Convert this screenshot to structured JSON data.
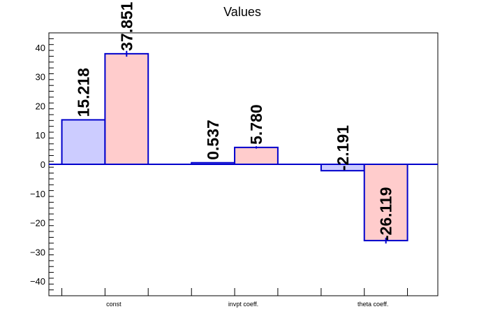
{
  "chart_data": {
    "type": "bar",
    "title": "Values",
    "categories": [
      "const",
      "invpt coeff.",
      "theta coeff."
    ],
    "series": [
      {
        "values": [
          15.218,
          0.537,
          -2.191
        ],
        "errors": [
          0,
          0,
          0
        ],
        "labels": [
          "15.218",
          "0.537",
          "-2.191"
        ],
        "fill": "#ccccff",
        "stroke": "#0000cc"
      },
      {
        "values": [
          37.851,
          5.78,
          -26.119
        ],
        "errors": [
          1.0,
          0.4,
          1.0
        ],
        "labels": [
          "37.851",
          "5.780",
          "-26.119"
        ],
        "fill": "#ffcccc",
        "stroke": "#0000cc"
      }
    ],
    "ylim": [
      -45,
      45
    ],
    "yticks": [
      -40,
      -30,
      -20,
      -10,
      0,
      10,
      20,
      30,
      40
    ],
    "ytick_labels": [
      "−40",
      "−30",
      "−20",
      "−10",
      "0",
      "10",
      "20",
      "30",
      "40"
    ],
    "xlabel": "",
    "ylabel": "",
    "grid": false,
    "legend": "none",
    "axis_color": "#000000",
    "zero_line_color": "#0000cc"
  }
}
